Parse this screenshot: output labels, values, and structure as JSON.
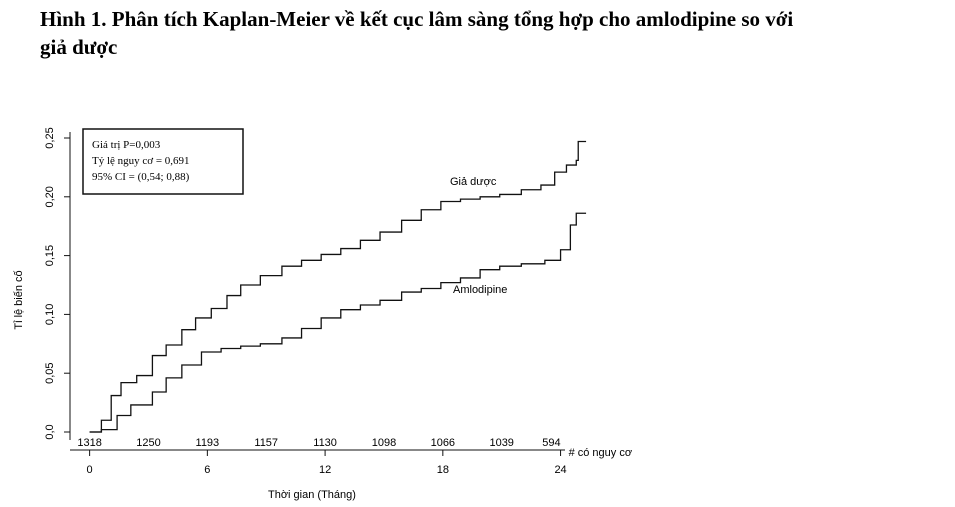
{
  "title": "Hình 1. Phân tích Kaplan-Meier về kết cục lâm sàng tổng hợp cho amlodipine so với giả dược",
  "chart_data": {
    "type": "step",
    "x_label": "Thời gian (Tháng)",
    "y_label": "Tỉ lệ biến cố",
    "annotations": [
      "Giá trị P=0,003",
      "Tỷ lệ nguy cơ = 0,691",
      "95% CI = (0,54; 0,88)"
    ],
    "at_risk": {
      "label": "# có nguy cơ",
      "counts": [
        "1318",
        "1250",
        "1193",
        "1157",
        "1130",
        "1098",
        "1066",
        "1039",
        "594"
      ]
    },
    "xlim": [
      -1,
      25.5
    ],
    "xticks": [
      0,
      6,
      12,
      18,
      24
    ],
    "ylim": [
      0,
      0.25
    ],
    "yticks": [
      {
        "value": 0,
        "label": "0,0"
      },
      {
        "value": 0.05,
        "label": "0,05"
      },
      {
        "value": 0.1,
        "label": "0,10"
      },
      {
        "value": 0.15,
        "label": "0,15"
      },
      {
        "value": 0.2,
        "label": "0,20"
      },
      {
        "value": 0.25,
        "label": "0,25"
      }
    ],
    "series": [
      {
        "name": "Giả dược",
        "color": "#111111",
        "x": [
          0,
          0.6,
          1.1,
          1.6,
          2.4,
          3.2,
          3.9,
          4.7,
          5.4,
          6.2,
          7.0,
          7.7,
          8.7,
          9.8,
          10.8,
          11.8,
          12.8,
          13.8,
          14.8,
          15.9,
          16.9,
          17.9,
          18.9,
          19.9,
          20.9,
          22.0,
          23.0,
          23.7,
          24.3,
          24.8,
          24.9,
          25.3
        ],
        "values": [
          0,
          0.01,
          0.031,
          0.042,
          0.048,
          0.065,
          0.074,
          0.087,
          0.097,
          0.105,
          0.116,
          0.125,
          0.133,
          0.141,
          0.146,
          0.151,
          0.156,
          0.163,
          0.17,
          0.18,
          0.189,
          0.196,
          0.198,
          0.2,
          0.202,
          0.206,
          0.21,
          0.221,
          0.227,
          0.231,
          0.247,
          0.247
        ]
      },
      {
        "name": "Amlodipine",
        "color": "#111111",
        "x": [
          0,
          0.6,
          1.4,
          2.1,
          3.2,
          3.9,
          4.7,
          5.7,
          6.7,
          7.7,
          8.7,
          9.8,
          10.8,
          11.8,
          12.8,
          13.8,
          14.8,
          15.9,
          16.9,
          17.9,
          18.9,
          19.9,
          20.9,
          22.0,
          23.2,
          24.0,
          24.5,
          24.8,
          25.3
        ],
        "values": [
          0,
          0.002,
          0.014,
          0.023,
          0.034,
          0.046,
          0.057,
          0.068,
          0.071,
          0.073,
          0.075,
          0.08,
          0.088,
          0.097,
          0.104,
          0.108,
          0.112,
          0.119,
          0.122,
          0.127,
          0.131,
          0.138,
          0.141,
          0.143,
          0.146,
          0.155,
          0.176,
          0.186,
          0.186
        ]
      }
    ]
  }
}
